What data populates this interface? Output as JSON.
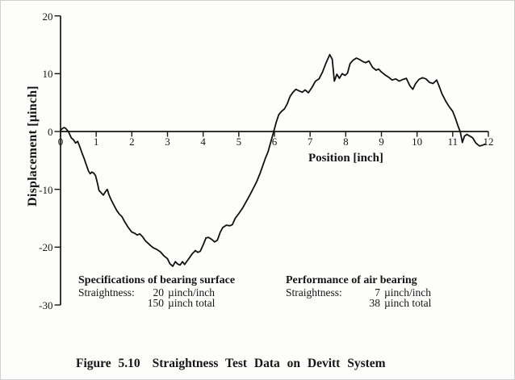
{
  "page": {
    "background": "#fdfdfb",
    "ink": "#161616",
    "border": "#d0d0d0"
  },
  "chart_data": {
    "type": "line",
    "title": "",
    "xlabel": "Position [inch]",
    "ylabel": "Displacement [µinch]",
    "xlim": [
      0,
      12
    ],
    "ylim": [
      -30,
      20
    ],
    "x_ticks": [
      0,
      1,
      2,
      3,
      4,
      5,
      6,
      7,
      8,
      9,
      10,
      11,
      12
    ],
    "y_ticks": [
      20,
      10,
      0,
      -10,
      -20,
      -30
    ],
    "grid": false,
    "legend": "none",
    "line_color": "#111111",
    "series": [
      {
        "name": "straightness-trace",
        "points": [
          [
            0.0,
            0.2
          ],
          [
            0.05,
            0.5
          ],
          [
            0.1,
            0.7
          ],
          [
            0.15,
            0.5
          ],
          [
            0.22,
            0.0
          ],
          [
            0.3,
            -1.1
          ],
          [
            0.36,
            -1.4
          ],
          [
            0.42,
            -2.0
          ],
          [
            0.48,
            -1.7
          ],
          [
            0.55,
            -2.8
          ],
          [
            0.6,
            -3.7
          ],
          [
            0.67,
            -4.8
          ],
          [
            0.72,
            -5.7
          ],
          [
            0.78,
            -6.8
          ],
          [
            0.83,
            -7.3
          ],
          [
            0.88,
            -7.0
          ],
          [
            0.93,
            -7.2
          ],
          [
            0.98,
            -7.6
          ],
          [
            1.03,
            -8.8
          ],
          [
            1.08,
            -10.2
          ],
          [
            1.14,
            -10.6
          ],
          [
            1.2,
            -11.0
          ],
          [
            1.26,
            -10.4
          ],
          [
            1.31,
            -10.0
          ],
          [
            1.36,
            -11.0
          ],
          [
            1.42,
            -11.8
          ],
          [
            1.5,
            -12.8
          ],
          [
            1.58,
            -13.7
          ],
          [
            1.65,
            -14.3
          ],
          [
            1.72,
            -14.7
          ],
          [
            1.8,
            -15.6
          ],
          [
            1.9,
            -16.6
          ],
          [
            2.0,
            -17.4
          ],
          [
            2.08,
            -17.6
          ],
          [
            2.15,
            -17.9
          ],
          [
            2.22,
            -17.7
          ],
          [
            2.3,
            -18.2
          ],
          [
            2.38,
            -18.9
          ],
          [
            2.45,
            -19.3
          ],
          [
            2.52,
            -19.7
          ],
          [
            2.6,
            -20.1
          ],
          [
            2.7,
            -20.4
          ],
          [
            2.8,
            -20.8
          ],
          [
            2.9,
            -21.5
          ],
          [
            3.0,
            -22.0
          ],
          [
            3.07,
            -22.9
          ],
          [
            3.15,
            -23.3
          ],
          [
            3.22,
            -22.5
          ],
          [
            3.28,
            -22.9
          ],
          [
            3.35,
            -23.1
          ],
          [
            3.42,
            -22.5
          ],
          [
            3.48,
            -23.0
          ],
          [
            3.55,
            -22.4
          ],
          [
            3.62,
            -21.8
          ],
          [
            3.7,
            -21.1
          ],
          [
            3.78,
            -20.6
          ],
          [
            3.85,
            -20.9
          ],
          [
            3.92,
            -20.7
          ],
          [
            4.0,
            -19.6
          ],
          [
            4.08,
            -18.4
          ],
          [
            4.15,
            -18.3
          ],
          [
            4.25,
            -18.7
          ],
          [
            4.32,
            -19.1
          ],
          [
            4.4,
            -18.8
          ],
          [
            4.48,
            -17.4
          ],
          [
            4.55,
            -16.6
          ],
          [
            4.65,
            -16.2
          ],
          [
            4.75,
            -16.3
          ],
          [
            4.82,
            -16.1
          ],
          [
            4.9,
            -15.0
          ],
          [
            5.0,
            -14.2
          ],
          [
            5.1,
            -13.3
          ],
          [
            5.2,
            -12.2
          ],
          [
            5.3,
            -11.1
          ],
          [
            5.4,
            -9.9
          ],
          [
            5.5,
            -8.7
          ],
          [
            5.6,
            -7.2
          ],
          [
            5.7,
            -5.4
          ],
          [
            5.76,
            -4.4
          ],
          [
            5.82,
            -3.5
          ],
          [
            5.88,
            -2.2
          ],
          [
            5.98,
            0.0
          ],
          [
            6.05,
            1.6
          ],
          [
            6.12,
            2.9
          ],
          [
            6.2,
            3.5
          ],
          [
            6.28,
            3.9
          ],
          [
            6.36,
            4.8
          ],
          [
            6.44,
            6.1
          ],
          [
            6.52,
            6.8
          ],
          [
            6.6,
            7.3
          ],
          [
            6.7,
            7.0
          ],
          [
            6.78,
            6.8
          ],
          [
            6.86,
            7.2
          ],
          [
            6.95,
            6.7
          ],
          [
            7.05,
            7.6
          ],
          [
            7.15,
            8.7
          ],
          [
            7.25,
            9.1
          ],
          [
            7.35,
            10.3
          ],
          [
            7.45,
            11.9
          ],
          [
            7.55,
            13.3
          ],
          [
            7.62,
            12.5
          ],
          [
            7.68,
            8.7
          ],
          [
            7.75,
            9.9
          ],
          [
            7.82,
            9.2
          ],
          [
            7.9,
            10.0
          ],
          [
            7.98,
            9.7
          ],
          [
            8.05,
            10.1
          ],
          [
            8.12,
            11.7
          ],
          [
            8.2,
            12.3
          ],
          [
            8.3,
            12.7
          ],
          [
            8.4,
            12.4
          ],
          [
            8.48,
            12.1
          ],
          [
            8.56,
            11.9
          ],
          [
            8.65,
            12.2
          ],
          [
            8.75,
            11.1
          ],
          [
            8.85,
            10.6
          ],
          [
            8.92,
            10.8
          ],
          [
            9.0,
            10.3
          ],
          [
            9.1,
            9.8
          ],
          [
            9.2,
            9.4
          ],
          [
            9.3,
            8.9
          ],
          [
            9.4,
            9.1
          ],
          [
            9.5,
            8.7
          ],
          [
            9.6,
            9.0
          ],
          [
            9.7,
            9.2
          ],
          [
            9.8,
            7.9
          ],
          [
            9.88,
            7.3
          ],
          [
            9.95,
            8.2
          ],
          [
            10.05,
            9.0
          ],
          [
            10.15,
            9.3
          ],
          [
            10.25,
            9.1
          ],
          [
            10.35,
            8.5
          ],
          [
            10.45,
            8.3
          ],
          [
            10.55,
            8.9
          ],
          [
            10.62,
            7.8
          ],
          [
            10.7,
            6.5
          ],
          [
            10.8,
            5.3
          ],
          [
            10.9,
            4.3
          ],
          [
            11.0,
            3.5
          ],
          [
            11.08,
            2.2
          ],
          [
            11.15,
            0.9
          ],
          [
            11.21,
            0.0
          ],
          [
            11.27,
            -1.9
          ],
          [
            11.33,
            -0.8
          ],
          [
            11.4,
            -0.5
          ],
          [
            11.48,
            -0.8
          ],
          [
            11.56,
            -1.1
          ],
          [
            11.65,
            -2.0
          ],
          [
            11.75,
            -2.5
          ],
          [
            11.82,
            -2.4
          ],
          [
            11.9,
            -2.2
          ]
        ]
      }
    ]
  },
  "annotations": {
    "spec": {
      "title": "Specifications of bearing surface",
      "label": "Straightness:",
      "rows": [
        {
          "num": "20",
          "unit": "µinch/inch"
        },
        {
          "num": "150",
          "unit": "µinch total"
        }
      ]
    },
    "perf": {
      "title": "Performance of air bearing",
      "label": "Straightness:",
      "rows": [
        {
          "num": "7",
          "unit": "µinch/inch"
        },
        {
          "num": "38",
          "unit": "µinch total"
        }
      ]
    }
  },
  "caption": {
    "figure_label": "Figure 5.10",
    "text": "Straightness Test Data on Devitt System"
  }
}
